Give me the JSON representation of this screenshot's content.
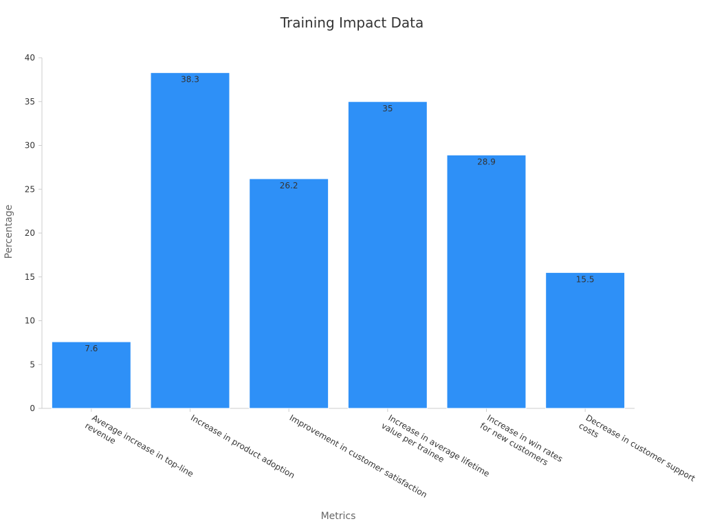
{
  "chart_data": {
    "type": "bar",
    "title": "Training Impact Data",
    "xlabel": "Metrics",
    "ylabel": "Percentage",
    "ylim": [
      0,
      40
    ],
    "yticks": [
      0,
      5,
      10,
      15,
      20,
      25,
      30,
      35,
      40
    ],
    "grid": false,
    "legend": "none",
    "categories": [
      [
        "Average increase in top-line",
        "revenue"
      ],
      [
        "Increase in product adoption"
      ],
      [
        "Improvement in customer satisfaction"
      ],
      [
        "Increase in average lifetime",
        "value per trainee"
      ],
      [
        "Increase in win rates",
        "for new customers"
      ],
      [
        "Decrease in customer support",
        "costs"
      ]
    ],
    "values": [
      7.6,
      38.3,
      26.2,
      35,
      28.9,
      15.5
    ],
    "data_labels": [
      "7.6",
      "38.3",
      "26.2",
      "35",
      "28.9",
      "15.5"
    ],
    "colors": {
      "bar": "#2e90f7",
      "bar_edge": "#ffffff",
      "axis": "#cccccc",
      "text": "#333333",
      "muted": "#666666"
    }
  }
}
